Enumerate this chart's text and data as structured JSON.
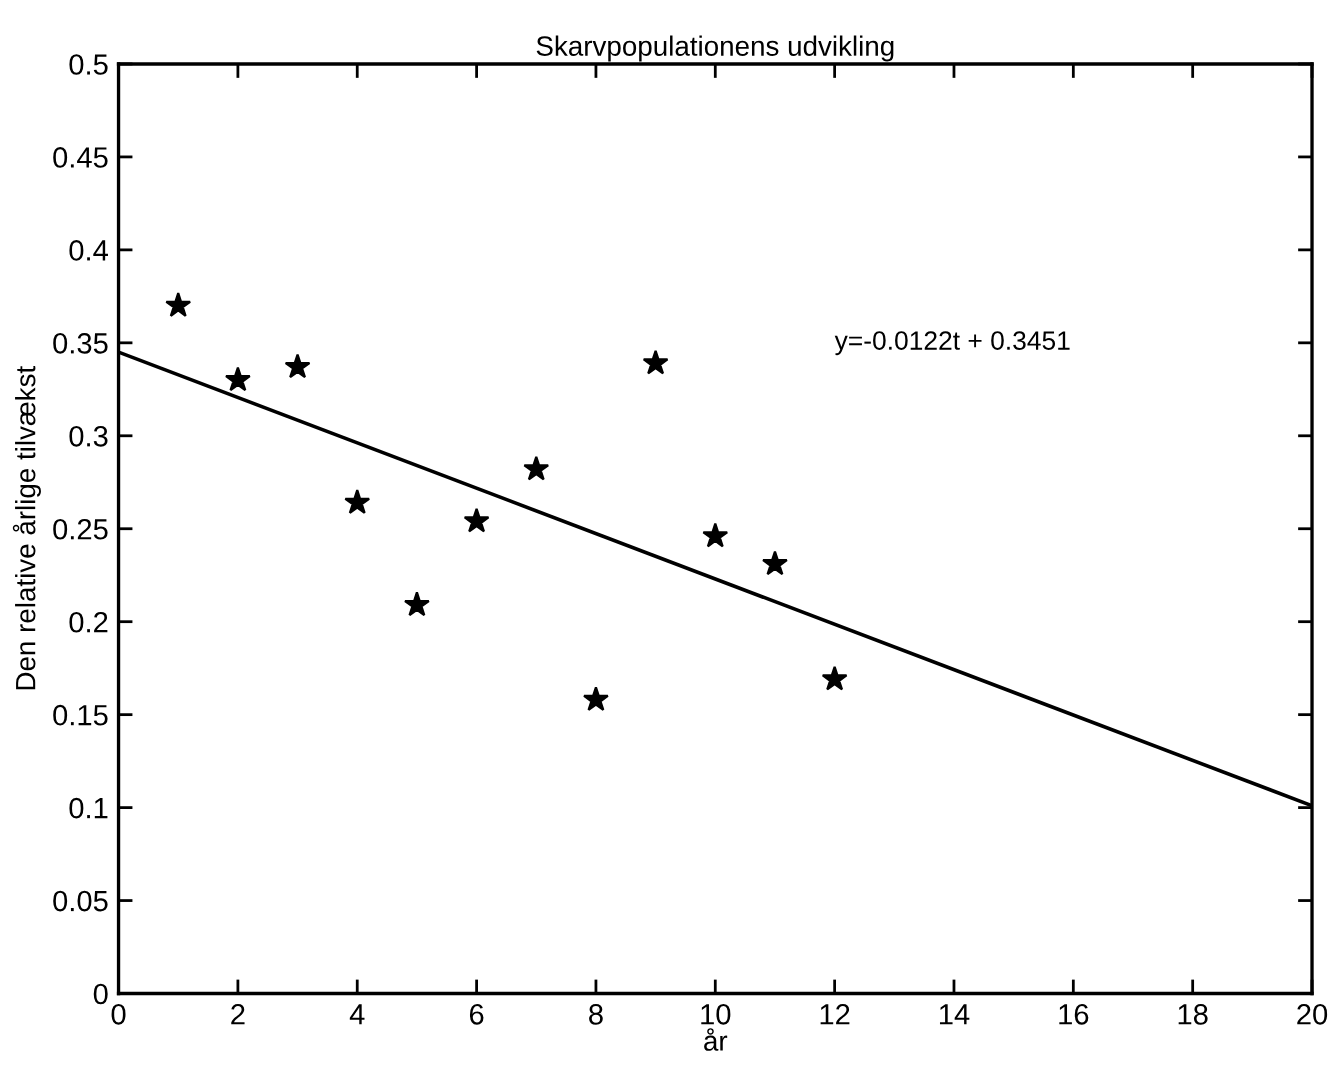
{
  "chart_data": {
    "type": "scatter",
    "title": "Skarvpopulationens udvikling",
    "xlabel": "år",
    "ylabel": "Den relative årlige tilvækst",
    "annotations": [
      "y=-0.0122t + 0.3451"
    ],
    "xlim": [
      0,
      20
    ],
    "ylim": [
      0,
      0.5
    ],
    "xticks": [
      0,
      2,
      4,
      6,
      8,
      10,
      12,
      14,
      16,
      18,
      20
    ],
    "yticks": [
      0,
      0.05,
      0.1,
      0.15,
      0.2,
      0.25,
      0.3,
      0.35,
      0.4,
      0.45,
      0.5
    ],
    "grid": false,
    "legend": false,
    "marker": "star",
    "series": [
      {
        "color": "#000000",
        "x": [
          1,
          2,
          3,
          4,
          5,
          6,
          7,
          8,
          9,
          10,
          11,
          12
        ],
        "values": [
          0.37,
          0.33,
          0.337,
          0.264,
          0.209,
          0.254,
          0.282,
          0.158,
          0.339,
          0.246,
          0.231,
          0.169
        ]
      },
      {
        "type": "line",
        "color": "#000000",
        "x": [
          0,
          20
        ],
        "values": [
          0.345,
          0.101
        ],
        "marker": "none",
        "line_style": "solid"
      }
    ]
  }
}
